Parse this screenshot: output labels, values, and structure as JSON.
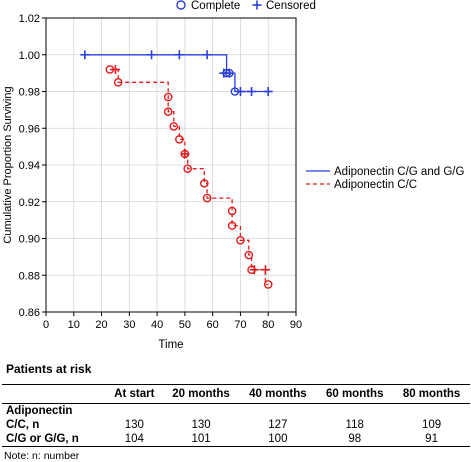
{
  "chart_data": {
    "type": "step-survival",
    "ylabel": "Cumulative Proportion Surviving",
    "xlabel": "Time",
    "xlim": [
      0,
      90
    ],
    "ylim": [
      0.86,
      1.02
    ],
    "xticks": [
      "0",
      "10",
      "20",
      "30",
      "40",
      "50",
      "60",
      "70",
      "80",
      "90"
    ],
    "yticks": [
      "0.86",
      "0.88",
      "0.90",
      "0.92",
      "0.94",
      "0.96",
      "0.98",
      "1.00",
      "1.02"
    ],
    "grid": true,
    "legend_top": [
      {
        "label": "Complete",
        "marker": "circle"
      },
      {
        "label": "Censored",
        "marker": "plus"
      }
    ],
    "legend_right": "middle-right",
    "series": [
      {
        "name": "Adiponectin C/G and G/G",
        "color": "#2a3fd6",
        "dash": "solid",
        "steps": [
          [
            13,
            1.0
          ],
          [
            65,
            1.0
          ],
          [
            65,
            0.99
          ],
          [
            68,
            0.99
          ],
          [
            68,
            0.98
          ],
          [
            80,
            0.98
          ]
        ],
        "complete": [
          [
            65,
            0.99
          ],
          [
            66,
            0.99
          ],
          [
            68,
            0.98
          ]
        ],
        "censored": [
          [
            14,
            1.0
          ],
          [
            38,
            1.0
          ],
          [
            48,
            1.0
          ],
          [
            58,
            1.0
          ],
          [
            64,
            0.99
          ],
          [
            66,
            0.99
          ],
          [
            70,
            0.98
          ],
          [
            74,
            0.98
          ],
          [
            80,
            0.98
          ]
        ]
      },
      {
        "name": "Adiponectin C/C",
        "color": "#e31a1c",
        "dash": "4,3",
        "steps": [
          [
            23,
            0.992
          ],
          [
            26,
            0.992
          ],
          [
            26,
            0.985
          ],
          [
            44,
            0.985
          ],
          [
            44,
            0.977
          ],
          [
            44,
            0.969
          ],
          [
            46,
            0.969
          ],
          [
            46,
            0.961
          ],
          [
            48,
            0.961
          ],
          [
            48,
            0.954
          ],
          [
            50,
            0.954
          ],
          [
            50,
            0.946
          ],
          [
            51,
            0.946
          ],
          [
            51,
            0.938
          ],
          [
            57,
            0.938
          ],
          [
            57,
            0.93
          ],
          [
            58,
            0.93
          ],
          [
            58,
            0.922
          ],
          [
            67,
            0.922
          ],
          [
            67,
            0.915
          ],
          [
            67,
            0.907
          ],
          [
            70,
            0.907
          ],
          [
            70,
            0.899
          ],
          [
            73,
            0.899
          ],
          [
            73,
            0.891
          ],
          [
            74,
            0.891
          ],
          [
            74,
            0.883
          ],
          [
            79,
            0.883
          ],
          [
            79,
            0.875
          ],
          [
            80,
            0.875
          ]
        ],
        "complete": [
          [
            23,
            0.992
          ],
          [
            26,
            0.985
          ],
          [
            44,
            0.977
          ],
          [
            44,
            0.969
          ],
          [
            46,
            0.961
          ],
          [
            48,
            0.954
          ],
          [
            50,
            0.946
          ],
          [
            51,
            0.938
          ],
          [
            57,
            0.93
          ],
          [
            58,
            0.922
          ],
          [
            67,
            0.915
          ],
          [
            67,
            0.907
          ],
          [
            70,
            0.899
          ],
          [
            73,
            0.891
          ],
          [
            74,
            0.883
          ],
          [
            80,
            0.875
          ]
        ],
        "censored": [
          [
            25,
            0.992
          ],
          [
            50,
            0.946
          ],
          [
            75,
            0.883
          ],
          [
            79,
            0.883
          ]
        ]
      }
    ]
  },
  "risk_table": {
    "title": "Patients at risk",
    "headers": [
      "",
      "At start",
      "20 months",
      "40 months",
      "60 months",
      "80 months"
    ],
    "group_label": "Adiponectin",
    "rows": [
      {
        "label": "C/C, n",
        "values": [
          "130",
          "130",
          "127",
          "118",
          "109"
        ]
      },
      {
        "label": "C/G or G/G, n",
        "values": [
          "104",
          "101",
          "100",
          "98",
          "91"
        ]
      }
    ],
    "note": "Note: n: number"
  }
}
